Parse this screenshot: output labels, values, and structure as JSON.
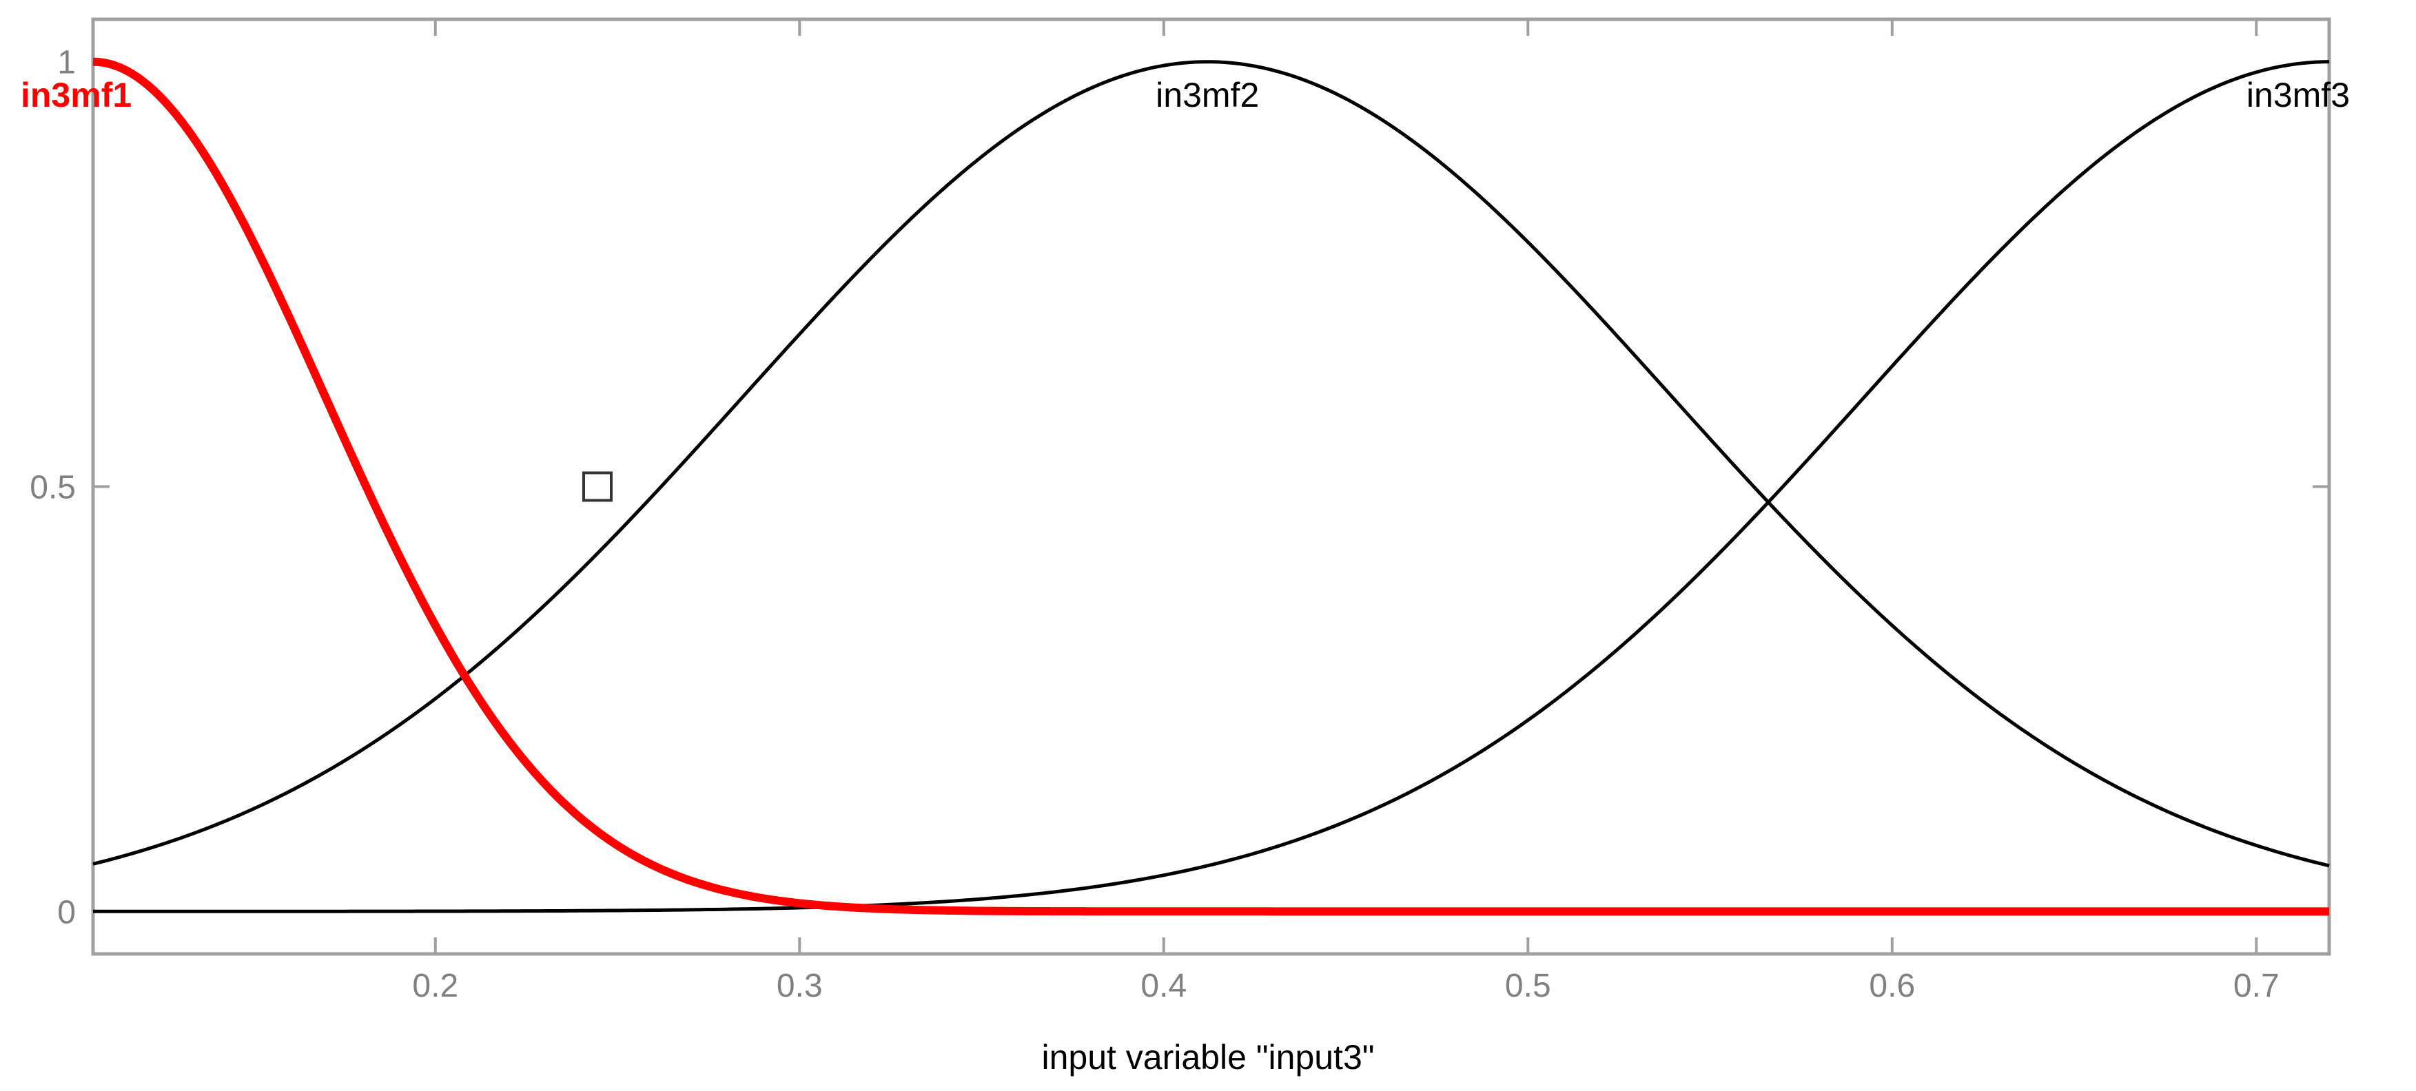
{
  "chart_data": {
    "type": "line",
    "xlabel": "input variable \"input3\"",
    "xlim": [
      0.106,
      0.72
    ],
    "ylim": [
      -0.05,
      1.05
    ],
    "x_ticks": [
      {
        "value": 0.2,
        "label": "0.2"
      },
      {
        "value": 0.3,
        "label": "0.3"
      },
      {
        "value": 0.4,
        "label": "0.4"
      },
      {
        "value": 0.5,
        "label": "0.5"
      },
      {
        "value": 0.6,
        "label": "0.6"
      },
      {
        "value": 0.7,
        "label": "0.7"
      }
    ],
    "y_ticks": [
      {
        "value": 0,
        "label": "0"
      },
      {
        "value": 0.5,
        "label": "0.5"
      },
      {
        "value": 1,
        "label": "1"
      }
    ],
    "grid": false,
    "series": [
      {
        "name": "in3mf1",
        "function": "gaussian",
        "center": 0.106,
        "sigma": 0.0637,
        "color": "#ff0000",
        "selected": true
      },
      {
        "name": "in3mf2",
        "function": "gaussian",
        "center": 0.412,
        "sigma": 0.1274,
        "color": "#000000",
        "selected": false
      },
      {
        "name": "in3mf3",
        "function": "gaussian",
        "center": 0.72,
        "sigma": 0.1274,
        "color": "#000000",
        "selected": false
      }
    ],
    "marker": {
      "x": 0.2445,
      "y": 0.5,
      "shape": "square",
      "color": "#333333"
    }
  }
}
